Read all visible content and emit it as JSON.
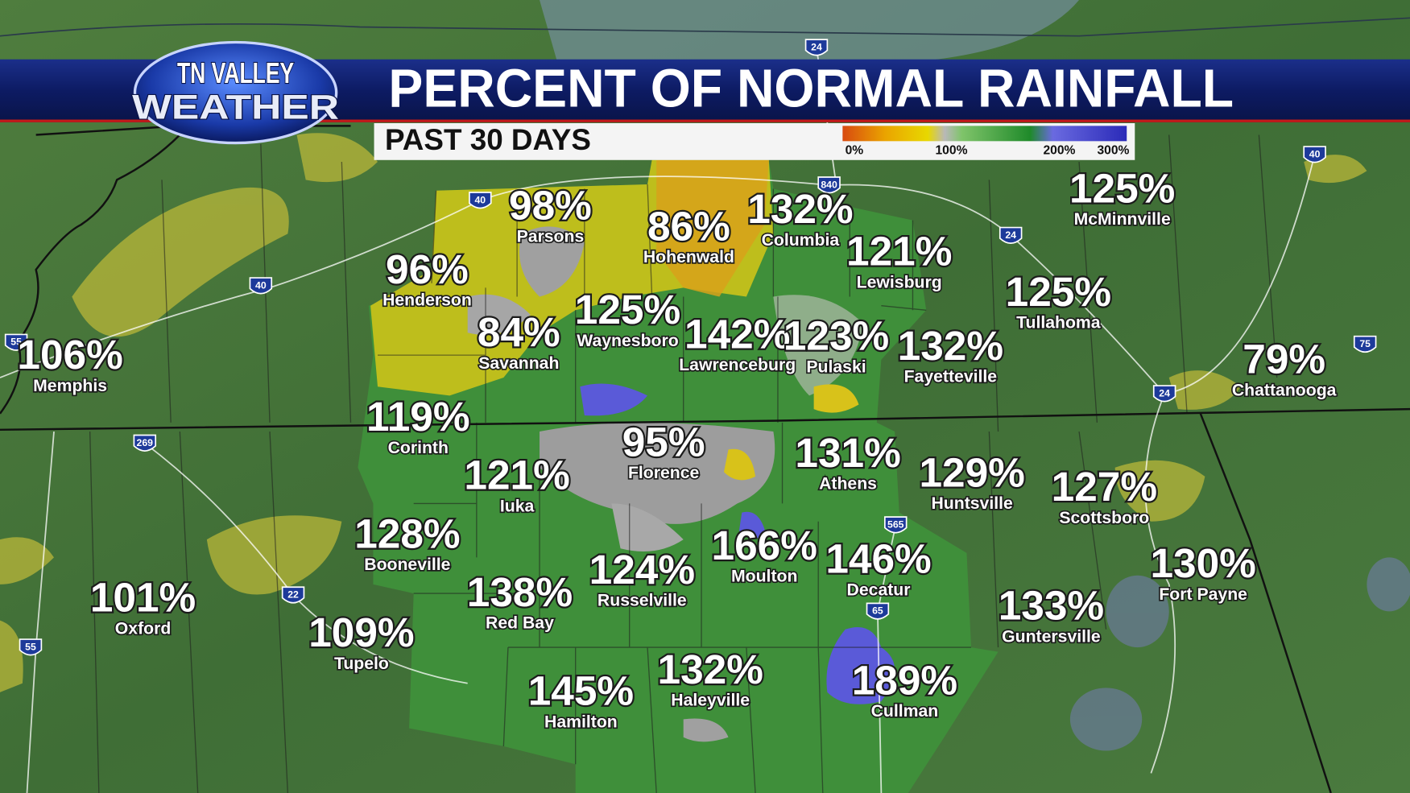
{
  "header": {
    "logo_top": "TN VALLEY",
    "logo_bottom": "WEATHER",
    "title": "PERCENT OF NORMAL RAINFALL",
    "subtitle": "PAST 30 DAYS"
  },
  "legend": {
    "labels": [
      "0%",
      "100%",
      "200%",
      "300%"
    ]
  },
  "cities": [
    {
      "value": "98%",
      "name": "Parsons"
    },
    {
      "value": "86%",
      "name": "Hohenwald"
    },
    {
      "value": "132%",
      "name": "Columbia"
    },
    {
      "value": "125%",
      "name": "McMinnville"
    },
    {
      "value": "121%",
      "name": "Lewisburg"
    },
    {
      "value": "96%",
      "name": "Henderson"
    },
    {
      "value": "125%",
      "name": "Waynesboro"
    },
    {
      "value": "84%",
      "name": "Savannah"
    },
    {
      "value": "142%",
      "name": "Lawrenceburg"
    },
    {
      "value": "123%",
      "name": "Pulaski"
    },
    {
      "value": "132%",
      "name": "Fayetteville"
    },
    {
      "value": "125%",
      "name": "Tullahoma"
    },
    {
      "value": "79%",
      "name": "Chattanooga"
    },
    {
      "value": "106%",
      "name": "Memphis"
    },
    {
      "value": "119%",
      "name": "Corinth"
    },
    {
      "value": "95%",
      "name": "Florence"
    },
    {
      "value": "131%",
      "name": "Athens"
    },
    {
      "value": "129%",
      "name": "Huntsville"
    },
    {
      "value": "127%",
      "name": "Scottsboro"
    },
    {
      "value": "121%",
      "name": "Iuka"
    },
    {
      "value": "128%",
      "name": "Booneville"
    },
    {
      "value": "166%",
      "name": "Moulton"
    },
    {
      "value": "146%",
      "name": "Decatur"
    },
    {
      "value": "130%",
      "name": "Fort Payne"
    },
    {
      "value": "124%",
      "name": "Russelville"
    },
    {
      "value": "138%",
      "name": "Red Bay"
    },
    {
      "value": "101%",
      "name": "Oxford"
    },
    {
      "value": "133%",
      "name": "Guntersville"
    },
    {
      "value": "109%",
      "name": "Tupelo"
    },
    {
      "value": "132%",
      "name": "Haleyville"
    },
    {
      "value": "145%",
      "name": "Hamilton"
    },
    {
      "value": "189%",
      "name": "Cullman"
    }
  ],
  "highways": [
    "40",
    "840",
    "24",
    "40",
    "40",
    "24",
    "55",
    "75",
    "24",
    "269",
    "565",
    "22",
    "65",
    "55"
  ]
}
